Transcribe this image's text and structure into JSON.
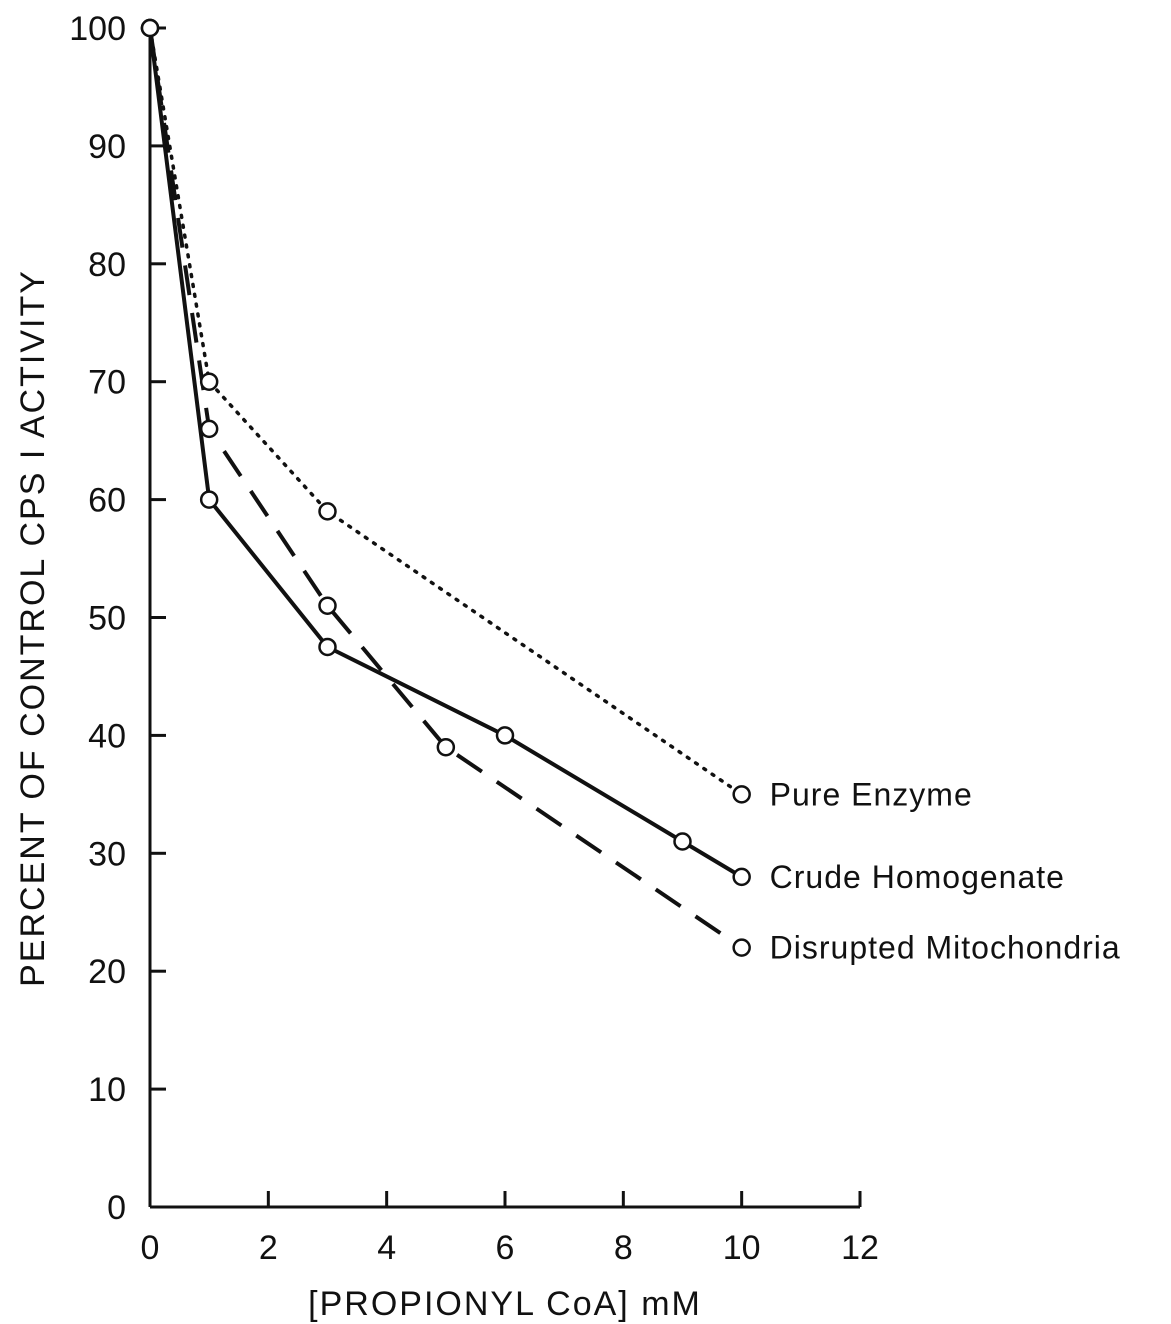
{
  "chart_data": {
    "type": "line",
    "xlabel": "[PROPIONYL CoA] mM",
    "ylabel": "PERCENT OF CONTROL CPS I ACTIVITY",
    "xlim": [
      0,
      12
    ],
    "ylim": [
      0,
      100
    ],
    "x_ticks": [
      "0",
      "2",
      "4",
      "6",
      "8",
      "10",
      "12"
    ],
    "y_ticks": [
      "0",
      "10",
      "20",
      "30",
      "40",
      "50",
      "60",
      "70",
      "80",
      "90",
      "100"
    ],
    "grid": false,
    "legend_placement": "right, labels beside line ends",
    "series": [
      {
        "name": "Pure Enzyme",
        "style": "dotted",
        "x": [
          0,
          1,
          3,
          10
        ],
        "y": [
          100,
          70,
          59,
          35
        ]
      },
      {
        "name": "Crude Homogenate",
        "style": "solid",
        "x": [
          0,
          1,
          3,
          6,
          9,
          10
        ],
        "y": [
          100,
          60,
          47.5,
          40,
          31,
          28
        ]
      },
      {
        "name": "Disrupted Mitochondria",
        "style": "dashed",
        "x": [
          0,
          1,
          3,
          5,
          10
        ],
        "y": [
          100,
          66,
          51,
          39,
          22
        ]
      }
    ]
  }
}
